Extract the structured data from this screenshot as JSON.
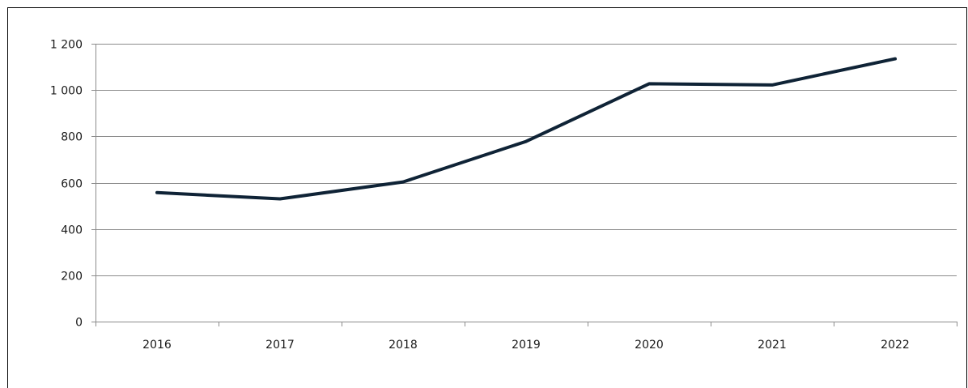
{
  "chart_data": {
    "type": "line",
    "categories": [
      "2016",
      "2017",
      "2018",
      "2019",
      "2020",
      "2021",
      "2022"
    ],
    "series": [
      {
        "values": [
          557,
          530,
          603,
          778,
          1027,
          1022,
          1135
        ],
        "color": "#0f2336"
      }
    ],
    "y_ticks": [
      "0",
      "200",
      "400",
      "600",
      "800",
      "1 000",
      "1 200"
    ],
    "ylim": [
      0,
      1200
    ],
    "grid": true,
    "legend": "none"
  }
}
